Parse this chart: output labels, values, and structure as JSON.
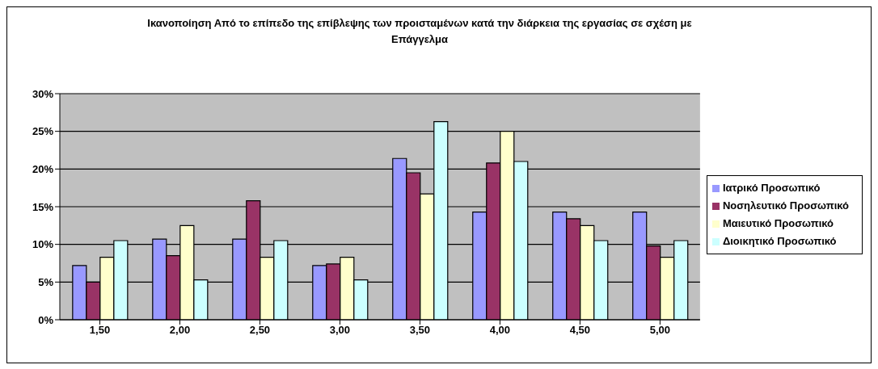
{
  "chart_data": {
    "type": "bar",
    "title": "Ικανοποίηση Από το επίπεδο της επίβλεψης των προισταμένων κατά την διάρκεια της εργασίας σε σχέση με Επάγγελμα",
    "categories": [
      "1,50",
      "2,00",
      "2,50",
      "3,00",
      "3,50",
      "4,00",
      "4,50",
      "5,00"
    ],
    "series": [
      {
        "name": "Ιατρικό Προσωπικό",
        "color": "#9999ff",
        "values": [
          7.2,
          10.7,
          10.7,
          7.2,
          21.4,
          14.3,
          14.3,
          14.3
        ]
      },
      {
        "name": "Νοσηλευτικό Προσωπικό",
        "color": "#993366",
        "values": [
          5.0,
          8.5,
          15.8,
          7.4,
          19.5,
          20.8,
          13.4,
          9.8
        ]
      },
      {
        "name": "Μαιευτικό Προσωπικό",
        "color": "#ffffcc",
        "values": [
          8.3,
          12.5,
          8.3,
          8.3,
          16.7,
          25.0,
          12.5,
          8.3
        ]
      },
      {
        "name": "Διοικητικό Προσωπικό",
        "color": "#ccffff",
        "values": [
          10.5,
          5.3,
          10.5,
          5.3,
          26.3,
          21.0,
          10.5,
          10.5
        ]
      }
    ],
    "ylim": [
      0,
      30
    ],
    "yticks": [
      {
        "value": 0,
        "label": "0%"
      },
      {
        "value": 5,
        "label": "5%"
      },
      {
        "value": 10,
        "label": "10%"
      },
      {
        "value": 15,
        "label": "15%"
      },
      {
        "value": 20,
        "label": "20%"
      },
      {
        "value": 25,
        "label": "25%"
      },
      {
        "value": 30,
        "label": "30%"
      }
    ],
    "grid": "y",
    "legend": "right"
  }
}
